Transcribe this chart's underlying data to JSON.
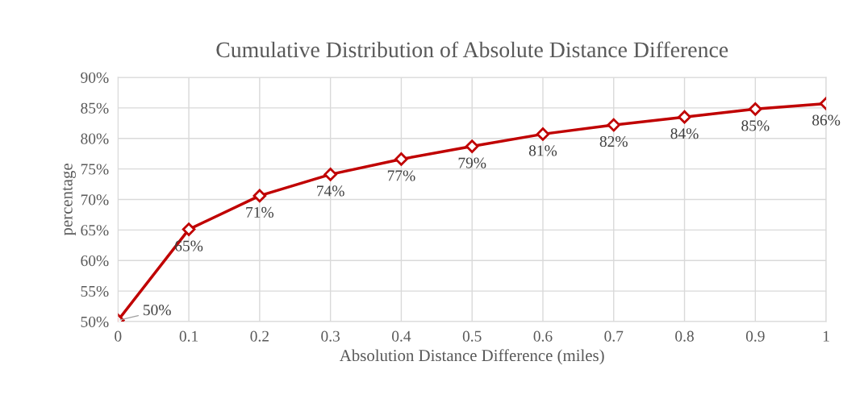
{
  "chart_data": {
    "type": "line",
    "title": "Cumulative Distribution of Absolute Distance Difference",
    "xlabel": "Absolution Distance Difference (miles)",
    "ylabel": "percentage",
    "x": [
      0,
      0.1,
      0.2,
      0.3,
      0.4,
      0.5,
      0.6,
      0.7,
      0.8,
      0.9,
      1
    ],
    "series": [
      {
        "color": "#c00000",
        "values": [
          50.2,
          65.1,
          70.6,
          74.1,
          76.6,
          78.7,
          80.7,
          82.2,
          83.5,
          84.8,
          85.7
        ],
        "value_labels": [
          "50%",
          "65%",
          "71%",
          "74%",
          "77%",
          "79%",
          "81%",
          "82%",
          "84%",
          "85%",
          "86%"
        ]
      }
    ],
    "xlim": [
      0,
      1
    ],
    "xticks": [
      0,
      0.1,
      0.2,
      0.3,
      0.4,
      0.5,
      0.6,
      0.7,
      0.8,
      0.9,
      1
    ],
    "ylim": [
      50,
      90
    ],
    "yticks": [
      {
        "value": 50,
        "label": "50%"
      },
      {
        "value": 55,
        "label": "55%"
      },
      {
        "value": 60,
        "label": "60%"
      },
      {
        "value": 65,
        "label": "65%"
      },
      {
        "value": 70,
        "label": "70%"
      },
      {
        "value": 75,
        "label": "75%"
      },
      {
        "value": 80,
        "label": "80%"
      },
      {
        "value": 85,
        "label": "85%"
      },
      {
        "value": 90,
        "label": "90%"
      }
    ],
    "grid": true,
    "marker": "diamond",
    "line_style": "solid",
    "legend": false
  }
}
